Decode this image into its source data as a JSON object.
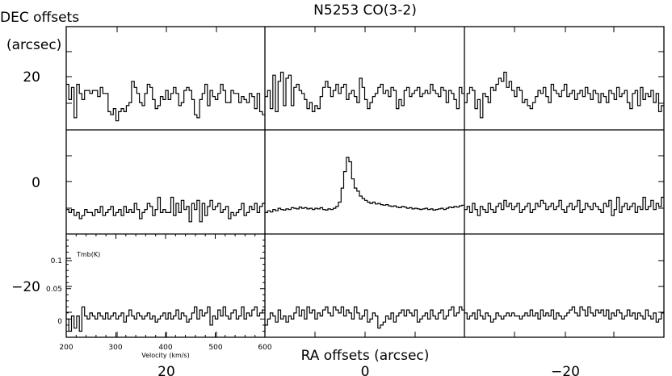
{
  "chart_data": {
    "type": "line",
    "title": "N5253 CO(3-2)",
    "xlabel": "RA offsets (arcsec)",
    "ylabel_line1": "DEC offsets",
    "ylabel_line2": "(arcsec)",
    "ra_tick_labels": [
      "20",
      "0",
      "−20"
    ],
    "dec_tick_labels": [
      "20",
      "0",
      "−20"
    ],
    "spectrum_axes": {
      "xlabel": "Velocity (km/s)",
      "ylabel": "Tmb(K)",
      "x_tick_labels": [
        "200",
        "300",
        "400",
        "500",
        "600"
      ],
      "y_tick_labels": [
        "0.1",
        "0.05",
        "0"
      ],
      "xlim": [
        200,
        600
      ],
      "ylim": [
        -0.03,
        0.14
      ]
    },
    "grid": [
      {
        "ra": 20,
        "dec": 20,
        "values": [
          0.045,
          0.02,
          0.04,
          -0.01,
          0.045,
          0.03,
          0.02,
          0.035,
          0.035,
          0.03,
          0.035,
          0.035,
          0.025,
          0.04,
          0.03,
          0.03,
          0.0,
          -0.005,
          0.005,
          -0.015,
          0.0,
          0.005,
          0.0,
          0.01,
          0.015,
          0.05,
          0.04,
          0.03,
          0.015,
          0.01,
          0.03,
          0.045,
          0.04,
          0.02,
          0.005,
          0.01,
          0.025,
          0.02,
          0.035,
          0.02,
          0.03,
          0.04,
          0.03,
          0.01,
          0.015,
          0.035,
          0.04,
          0.035,
          0.02,
          -0.005,
          -0.01,
          0.02,
          0.03,
          0.045,
          0.01,
          0.035,
          0.025,
          0.02,
          0.03,
          0.045,
          0.035,
          0.015,
          0.015,
          0.035,
          0.03,
          0.03,
          0.015,
          0.025,
          0.02,
          0.015,
          0.03,
          0.025,
          0.005,
          0.03,
          0.0,
          -0.005
        ]
      },
      {
        "ra": 0,
        "dec": 20,
        "values": [
          0.025,
          0.035,
          0.005,
          0.06,
          0.0,
          0.05,
          0.065,
          0.01,
          0.055,
          0.06,
          0.01,
          0.04,
          0.045,
          0.035,
          0.03,
          0.02,
          0.005,
          0.015,
          0.0,
          0.01,
          0.005,
          0.025,
          0.04,
          0.05,
          0.04,
          0.025,
          0.035,
          0.045,
          0.03,
          0.04,
          0.045,
          0.02,
          0.03,
          0.035,
          0.025,
          0.015,
          0.055,
          0.04,
          0.02,
          0.005,
          0.015,
          0.025,
          0.03,
          0.04,
          0.045,
          0.03,
          0.035,
          0.025,
          0.04,
          0.035,
          0.005,
          0.02,
          0.01,
          0.035,
          0.04,
          0.025,
          0.03,
          0.035,
          0.04,
          0.025,
          0.03,
          0.035,
          0.03,
          0.045,
          0.035,
          0.03,
          0.025,
          0.04,
          0.035,
          0.015,
          0.035,
          0.03,
          0.02,
          0.005,
          0.04,
          0.03
        ]
      },
      {
        "ra": -20,
        "dec": 20,
        "values": [
          0.015,
          0.03,
          0.04,
          0.035,
          0.005,
          0.02,
          -0.01,
          0.03,
          0.025,
          0.015,
          0.04,
          0.035,
          0.045,
          0.055,
          0.05,
          0.065,
          0.04,
          0.05,
          0.035,
          0.025,
          0.04,
          0.035,
          0.015,
          0.02,
          0.01,
          0.005,
          0.015,
          0.025,
          0.035,
          0.03,
          0.04,
          0.025,
          0.015,
          0.045,
          0.035,
          0.03,
          0.025,
          0.035,
          0.045,
          0.025,
          0.03,
          0.035,
          0.02,
          0.03,
          0.035,
          0.025,
          0.04,
          0.03,
          0.02,
          0.035,
          0.03,
          0.015,
          0.03,
          0.025,
          0.015,
          0.035,
          0.03,
          0.02,
          0.04,
          0.025,
          0.03,
          0.035,
          0.015,
          0.005,
          0.03,
          0.035,
          0.01,
          0.04,
          0.02,
          0.03,
          0.025,
          0.035,
          0.015,
          0.03,
          0.0,
          0.01
        ]
      },
      {
        "ra": 20,
        "dec": 0,
        "values": [
          0.01,
          0.005,
          0.01,
          0.0,
          0.005,
          -0.005,
          0.0,
          0.01,
          0.005,
          0.005,
          0.0,
          0.01,
          0.005,
          0.015,
          0.0,
          0.005,
          0.01,
          0.015,
          0.0,
          0.005,
          0.01,
          0.0,
          0.015,
          0.005,
          0.01,
          0.005,
          0.02,
          0.01,
          -0.005,
          0.005,
          0.01,
          0.02,
          0.015,
          0.0,
          0.01,
          0.03,
          0.005,
          0.01,
          0.005,
          0.005,
          0.03,
          0.0,
          0.02,
          0.005,
          0.025,
          0.01,
          0.015,
          -0.01,
          0.02,
          0.01,
          0.025,
          -0.01,
          0.02,
          0.0,
          0.015,
          0.025,
          0.01,
          0.015,
          0.02,
          0.005,
          0.01,
          0.015,
          -0.005,
          0.005,
          0.0,
          0.005,
          0.01,
          0.02,
          0.0,
          0.005,
          0.015,
          0.01,
          0.02,
          0.005,
          0.015,
          0.02
        ]
      },
      {
        "ra": 0,
        "dec": 0,
        "values": [
          0.005,
          0.008,
          0.006,
          0.01,
          0.008,
          0.012,
          0.01,
          0.009,
          0.011,
          0.01,
          0.013,
          0.012,
          0.011,
          0.014,
          0.012,
          0.013,
          0.011,
          0.012,
          0.01,
          0.012,
          0.011,
          0.013,
          0.01,
          0.009,
          0.011,
          0.01,
          0.012,
          0.015,
          0.022,
          0.045,
          0.072,
          0.095,
          0.088,
          0.06,
          0.045,
          0.04,
          0.032,
          0.028,
          0.025,
          0.022,
          0.02,
          0.022,
          0.019,
          0.02,
          0.018,
          0.017,
          0.018,
          0.016,
          0.015,
          0.016,
          0.014,
          0.013,
          0.015,
          0.014,
          0.012,
          0.013,
          0.011,
          0.012,
          0.011,
          0.01,
          0.011,
          0.012,
          0.01,
          0.011,
          0.009,
          0.01,
          0.011,
          0.012,
          0.01,
          0.012,
          0.014,
          0.013,
          0.015,
          0.014,
          0.016,
          0.017
        ]
      },
      {
        "ra": -20,
        "dec": 0,
        "values": [
          0.01,
          0.015,
          0.005,
          0.02,
          0.01,
          0.0,
          0.015,
          0.01,
          0.005,
          0.02,
          0.01,
          0.005,
          0.015,
          0.02,
          0.01,
          0.025,
          0.015,
          0.02,
          0.01,
          0.015,
          0.02,
          0.005,
          0.01,
          0.015,
          0.02,
          0.005,
          0.01,
          0.02,
          0.015,
          0.025,
          0.02,
          0.01,
          0.015,
          0.02,
          0.01,
          0.015,
          0.025,
          0.01,
          0.005,
          0.015,
          0.02,
          0.01,
          0.015,
          0.025,
          0.005,
          0.01,
          0.02,
          0.015,
          0.01,
          0.02,
          0.015,
          0.01,
          0.005,
          0.02,
          0.015,
          0.025,
          0.0,
          0.01,
          0.03,
          0.005,
          0.015,
          0.02,
          0.01,
          0.015,
          0.02,
          0.005,
          0.015,
          0.01,
          0.03,
          0.01,
          0.015,
          0.025,
          0.01,
          0.02,
          0.015,
          0.03
        ]
      },
      {
        "ra": 20,
        "dec": -20,
        "values": [
          0.0,
          -0.02,
          0.005,
          -0.015,
          0.005,
          -0.02,
          0.02,
          0.005,
          0.0,
          0.01,
          0.005,
          0.0,
          0.01,
          0.005,
          0.0,
          0.01,
          0.0,
          0.005,
          0.01,
          0.0,
          0.005,
          0.01,
          -0.005,
          0.005,
          0.015,
          0.005,
          0.0,
          0.01,
          0.005,
          0.0,
          0.005,
          0.01,
          0.0,
          0.005,
          -0.005,
          0.0,
          0.005,
          0.01,
          0.0,
          0.01,
          0.0,
          0.005,
          0.015,
          0.0,
          0.01,
          0.005,
          -0.005,
          0.0,
          0.01,
          0.02,
          0.0,
          0.015,
          0.005,
          0.01,
          0.02,
          -0.01,
          0.005,
          0.0,
          0.015,
          0.005,
          0.02,
          0.005,
          0.0,
          0.01,
          0.015,
          0.0,
          0.005,
          0.02,
          0.0,
          0.01,
          0.005,
          0.015,
          0.02,
          0.005,
          0.01,
          0.015
        ]
      },
      {
        "ra": 0,
        "dec": -20,
        "values": [
          -0.01,
          0.0,
          0.01,
          0.005,
          -0.005,
          0.015,
          0.0,
          0.005,
          -0.005,
          0.005,
          0.0,
          0.01,
          0.02,
          0.005,
          0.015,
          0.0,
          0.02,
          0.01,
          0.015,
          0.0,
          0.01,
          0.005,
          0.015,
          0.02,
          0.01,
          0.005,
          0.02,
          0.015,
          0.01,
          0.02,
          0.005,
          0.015,
          0.01,
          0.0,
          0.02,
          0.01,
          0.0,
          0.005,
          0.015,
          -0.005,
          0.0,
          0.01,
          0.005,
          -0.015,
          -0.01,
          -0.005,
          0.005,
          0.0,
          0.01,
          -0.005,
          0.005,
          0.01,
          0.015,
          0.005,
          0.015,
          0.01,
          0.005,
          0.015,
          -0.005,
          0.0,
          0.005,
          0.01,
          0.0,
          0.015,
          0.005,
          0.0,
          0.01,
          0.015,
          0.0,
          0.005,
          0.015,
          0.02,
          0.005,
          0.01,
          0.02,
          0.015
        ]
      },
      {
        "ra": -20,
        "dec": -20,
        "values": [
          0.01,
          0.0,
          0.005,
          0.01,
          0.0,
          0.015,
          0.005,
          0.0,
          0.01,
          0.005,
          -0.005,
          0.0,
          0.01,
          0.005,
          0.0,
          0.005,
          0.01,
          0.005,
          0.01,
          0.005,
          0.005,
          0.0,
          0.005,
          0.01,
          0.005,
          0.015,
          0.005,
          0.01,
          0.0,
          0.015,
          0.005,
          0.01,
          0.005,
          0.015,
          0.0,
          0.01,
          0.005,
          0.0,
          0.005,
          0.01,
          0.015,
          0.02,
          0.01,
          0.005,
          0.02,
          0.015,
          0.005,
          0.02,
          0.01,
          0.005,
          0.015,
          0.01,
          0.015,
          0.005,
          0.015,
          0.0,
          0.01,
          0.005,
          0.015,
          0.01,
          0.0,
          0.005,
          0.015,
          0.005,
          0.01,
          0.0,
          0.01,
          0.005,
          0.0,
          0.015,
          0.005,
          0.0,
          0.01,
          -0.005,
          0.0,
          0.01
        ]
      }
    ]
  }
}
